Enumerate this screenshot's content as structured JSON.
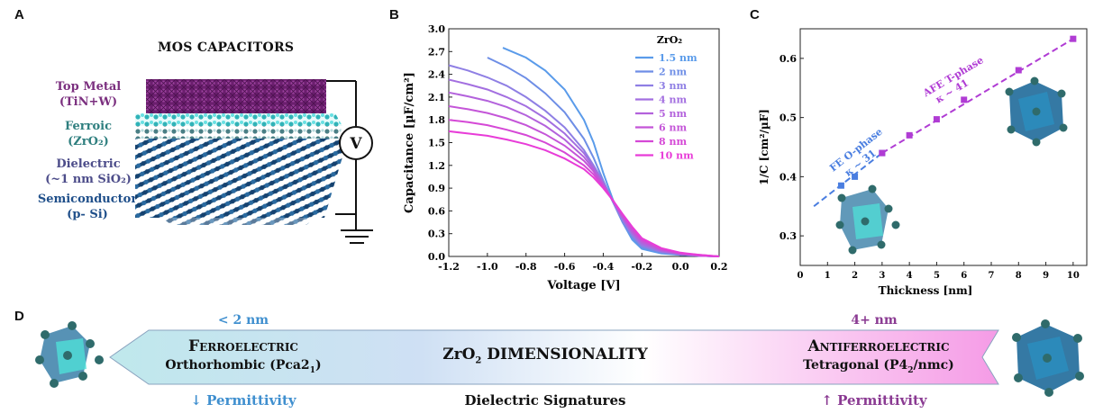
{
  "panels": {
    "a": "A",
    "b": "B",
    "c": "C",
    "d": "D"
  },
  "panel_a": {
    "title": "MOS CAPACITORS",
    "layers": [
      {
        "line1": "Top Metal",
        "line2": "(TiN+W)",
        "color": "#7b2f7f"
      },
      {
        "line1": "Ferroic",
        "line2": "(ZrO₂)",
        "color": "#2f7f7f"
      },
      {
        "line1": "Dielectric",
        "line2": "(~1 nm SiO₂)",
        "color": "#4d4d8a"
      },
      {
        "line1": "Semiconductor",
        "line2": "(p- Si)",
        "color": "#1f4f8a"
      }
    ],
    "voltage_symbol": "V"
  },
  "chart_data": [
    {
      "type": "line",
      "panel": "B",
      "xlabel": "Voltage [V]",
      "ylabel": "Capacitance [µF/cm²]",
      "xlim": [
        -1.2,
        0.2
      ],
      "ylim": [
        0,
        3.0
      ],
      "xticks": [
        "-1.2",
        "-1.0",
        "-0.8",
        "-0.6",
        "-0.4",
        "-0.2",
        "0.0",
        "0.2"
      ],
      "yticks": [
        "0.0",
        "0.3",
        "0.6",
        "0.9",
        "1.2",
        "1.5",
        "1.8",
        "2.1",
        "2.4",
        "2.7",
        "3.0"
      ],
      "legend_title": "ZrO₂",
      "legend_position": "top-right",
      "series": [
        {
          "name": "1.5 nm",
          "color": "#5a9bea",
          "x": [
            -0.92,
            -0.8,
            -0.7,
            -0.6,
            -0.5,
            -0.45,
            -0.4,
            -0.35,
            -0.3,
            -0.25,
            -0.2,
            -0.1,
            0.0,
            0.1,
            0.2
          ],
          "values": [
            2.75,
            2.62,
            2.45,
            2.2,
            1.8,
            1.5,
            1.1,
            0.75,
            0.45,
            0.22,
            0.1,
            0.04,
            0.02,
            0.01,
            0.0
          ]
        },
        {
          "name": "2 nm",
          "color": "#6e8ee6",
          "x": [
            -1.0,
            -0.9,
            -0.8,
            -0.7,
            -0.6,
            -0.5,
            -0.45,
            -0.4,
            -0.35,
            -0.3,
            -0.25,
            -0.2,
            -0.1,
            0.0,
            0.1,
            0.2
          ],
          "values": [
            2.62,
            2.5,
            2.35,
            2.15,
            1.9,
            1.55,
            1.3,
            1.0,
            0.72,
            0.45,
            0.25,
            0.12,
            0.05,
            0.02,
            0.01,
            0.0
          ]
        },
        {
          "name": "3 nm",
          "color": "#8f7fe4",
          "x": [
            -1.2,
            -1.1,
            -1.0,
            -0.9,
            -0.8,
            -0.7,
            -0.6,
            -0.5,
            -0.45,
            -0.4,
            -0.35,
            -0.3,
            -0.25,
            -0.2,
            -0.1,
            0.0,
            0.1,
            0.2
          ],
          "values": [
            2.52,
            2.45,
            2.36,
            2.25,
            2.1,
            1.92,
            1.7,
            1.4,
            1.2,
            0.98,
            0.72,
            0.48,
            0.28,
            0.14,
            0.06,
            0.03,
            0.01,
            0.0
          ]
        },
        {
          "name": "4 nm",
          "color": "#a36fe0",
          "x": [
            -1.2,
            -1.1,
            -1.0,
            -0.9,
            -0.8,
            -0.7,
            -0.6,
            -0.5,
            -0.45,
            -0.4,
            -0.35,
            -0.3,
            -0.25,
            -0.2,
            -0.1,
            0.0,
            0.1,
            0.2
          ],
          "values": [
            2.33,
            2.27,
            2.2,
            2.1,
            1.98,
            1.82,
            1.62,
            1.36,
            1.18,
            0.97,
            0.73,
            0.5,
            0.3,
            0.16,
            0.07,
            0.03,
            0.01,
            0.0
          ]
        },
        {
          "name": "5 nm",
          "color": "#b362dc",
          "x": [
            -1.2,
            -1.1,
            -1.0,
            -0.9,
            -0.8,
            -0.7,
            -0.6,
            -0.5,
            -0.45,
            -0.4,
            -0.35,
            -0.3,
            -0.25,
            -0.2,
            -0.1,
            0.0,
            0.1,
            0.2
          ],
          "values": [
            2.16,
            2.11,
            2.05,
            1.97,
            1.86,
            1.72,
            1.54,
            1.31,
            1.15,
            0.95,
            0.73,
            0.51,
            0.32,
            0.18,
            0.08,
            0.03,
            0.01,
            0.0
          ]
        },
        {
          "name": "6 nm",
          "color": "#c455d8",
          "x": [
            -1.2,
            -1.1,
            -1.0,
            -0.9,
            -0.8,
            -0.7,
            -0.6,
            -0.5,
            -0.45,
            -0.4,
            -0.35,
            -0.3,
            -0.25,
            -0.2,
            -0.1,
            0.0,
            0.1,
            0.2
          ],
          "values": [
            1.98,
            1.94,
            1.89,
            1.82,
            1.73,
            1.61,
            1.46,
            1.26,
            1.12,
            0.94,
            0.74,
            0.53,
            0.34,
            0.2,
            0.09,
            0.04,
            0.01,
            0.0
          ]
        },
        {
          "name": "8 nm",
          "color": "#d548d6",
          "x": [
            -1.2,
            -1.1,
            -1.0,
            -0.9,
            -0.8,
            -0.7,
            -0.6,
            -0.5,
            -0.45,
            -0.4,
            -0.35,
            -0.3,
            -0.25,
            -0.2,
            -0.1,
            0.0,
            0.1,
            0.2
          ],
          "values": [
            1.8,
            1.77,
            1.73,
            1.67,
            1.6,
            1.5,
            1.37,
            1.2,
            1.08,
            0.92,
            0.74,
            0.55,
            0.37,
            0.22,
            0.1,
            0.04,
            0.02,
            0.0
          ]
        },
        {
          "name": "10 nm",
          "color": "#e83cd8",
          "x": [
            -1.2,
            -1.1,
            -1.0,
            -0.9,
            -0.8,
            -0.7,
            -0.6,
            -0.5,
            -0.45,
            -0.4,
            -0.35,
            -0.3,
            -0.25,
            -0.2,
            -0.1,
            0.0,
            0.1,
            0.2
          ],
          "values": [
            1.65,
            1.62,
            1.59,
            1.54,
            1.48,
            1.4,
            1.29,
            1.15,
            1.04,
            0.9,
            0.74,
            0.56,
            0.39,
            0.24,
            0.11,
            0.05,
            0.02,
            0.0
          ]
        }
      ]
    },
    {
      "type": "scatter",
      "panel": "C",
      "xlabel": "Thickness [nm]",
      "ylabel": "1/C [cm²/µF]",
      "xlim": [
        0,
        10.5
      ],
      "ylim": [
        0.25,
        0.65
      ],
      "xticks": [
        "0",
        "1",
        "2",
        "3",
        "4",
        "5",
        "6",
        "7",
        "8",
        "9",
        "10"
      ],
      "yticks": [
        "0.3",
        "0.4",
        "0.5",
        "0.6"
      ],
      "series": [
        {
          "name": "FE O-phase",
          "color": "#4a7ee0",
          "x": [
            1.5,
            2,
            3
          ],
          "values": [
            0.385,
            0.4,
            0.44
          ]
        },
        {
          "name": "AFE T-phase",
          "color": "#b03cd4",
          "x": [
            3,
            4,
            5,
            6,
            8,
            10
          ],
          "values": [
            0.44,
            0.47,
            0.497,
            0.53,
            0.58,
            0.633
          ]
        }
      ],
      "fits": [
        {
          "label": "FE O-phase",
          "kappa": "κ ~ 31",
          "color": "#4a7ee0",
          "x": [
            0.5,
            3
          ],
          "values": [
            0.35,
            0.44
          ]
        },
        {
          "label": "AFE T-phase",
          "kappa": "κ ~ 41",
          "color": "#b03cd4",
          "x": [
            3,
            10
          ],
          "values": [
            0.44,
            0.633
          ]
        }
      ]
    }
  ],
  "panel_d": {
    "center_title_pre": "ZrO",
    "center_title_sub": "2",
    "center_title_post": " DIMENSIONALITY",
    "bottom_center": "Dielectric Signatures",
    "left": {
      "thickness": "< 2 nm",
      "phase": "Ferroelectric",
      "structure_pre": "Orthorhombic (Pca2",
      "structure_sub": "1",
      "structure_post": ")",
      "permittivity": "↓ Permittivity",
      "color": "#3f8fcf"
    },
    "right": {
      "thickness": "4+ nm",
      "phase": "Antiferroelectric",
      "structure_pre": "Tetragonal (P4",
      "structure_sub": "2",
      "structure_post": "/nmc)",
      "permittivity": "↑ Permittivity",
      "color": "#8a3a92"
    }
  }
}
